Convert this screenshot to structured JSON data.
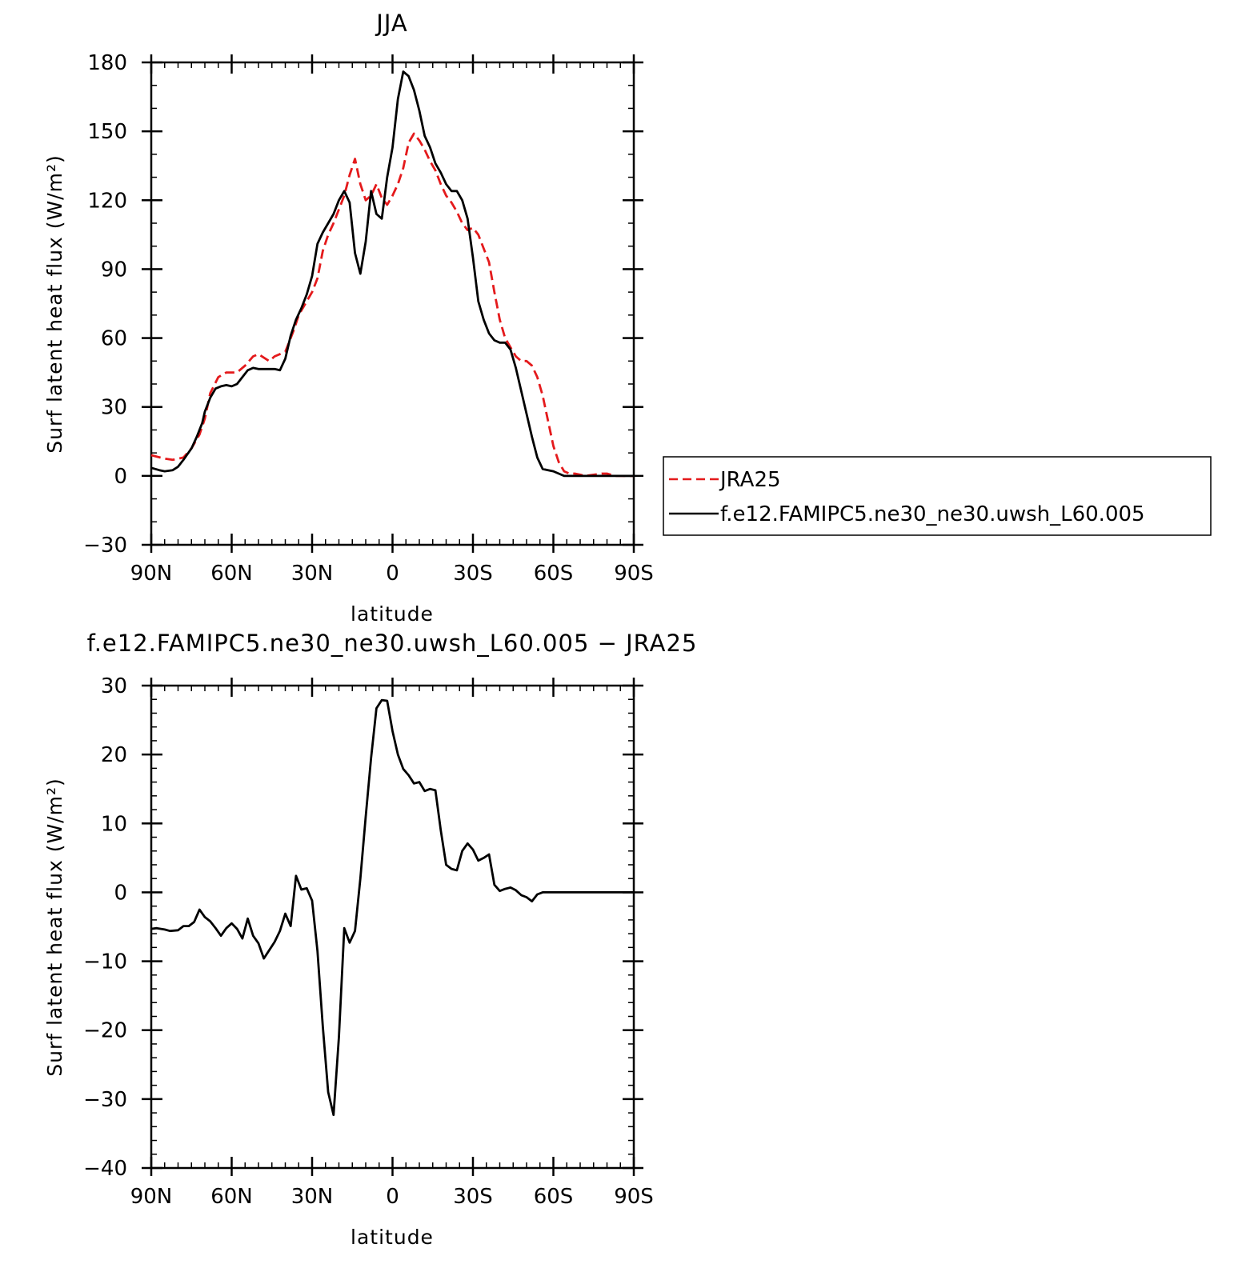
{
  "chart_data": [
    {
      "type": "line",
      "title": "JJA",
      "xlabel": "latitude",
      "ylabel": "Surf latent heat flux (W/m²)",
      "xlim": [
        90,
        -90
      ],
      "ylim": [
        -30,
        180
      ],
      "x_ticks": [
        {
          "value": 90,
          "label": "90N"
        },
        {
          "value": 60,
          "label": "60N"
        },
        {
          "value": 30,
          "label": "30N"
        },
        {
          "value": 0,
          "label": "0"
        },
        {
          "value": -30,
          "label": "30S"
        },
        {
          "value": -60,
          "label": "60S"
        },
        {
          "value": -90,
          "label": "90S"
        }
      ],
      "y_ticks": [
        {
          "value": 180,
          "label": "180"
        },
        {
          "value": 150,
          "label": "150"
        },
        {
          "value": 120,
          "label": "120"
        },
        {
          "value": 90,
          "label": "90"
        },
        {
          "value": 60,
          "label": "60"
        },
        {
          "value": 30,
          "label": "30"
        },
        {
          "value": 0,
          "label": "0"
        },
        {
          "value": -30,
          "label": "−30"
        }
      ],
      "grid": false,
      "legend": "outside-right",
      "series": [
        {
          "name": "JRA25",
          "color": "#e41a1c",
          "dash": "dashed",
          "x": [
            90,
            85,
            82,
            78,
            75,
            72,
            70,
            68,
            65,
            62,
            58,
            55,
            52,
            50,
            46,
            44,
            40,
            37,
            35,
            32,
            30,
            28,
            26,
            24,
            22,
            20,
            18,
            16,
            14,
            12,
            10,
            8,
            6,
            4,
            2,
            0,
            -2,
            -4,
            -6,
            -8,
            -10,
            -12,
            -14,
            -16,
            -18,
            -20,
            -22,
            -24,
            -26,
            -28,
            -30,
            -32,
            -34,
            -36,
            -38,
            -40,
            -42,
            -44,
            -46,
            -48,
            -50,
            -52,
            -54,
            -56,
            -58,
            -60,
            -62,
            -64,
            -66,
            -68,
            -70,
            -72,
            -75,
            -78,
            -80,
            -83,
            -85,
            -88,
            -90
          ],
          "y": [
            9,
            7.5,
            7,
            8,
            12,
            18,
            25,
            36,
            43,
            45,
            45,
            48,
            52,
            53,
            50,
            52,
            54,
            63,
            70,
            76,
            80,
            86,
            98,
            105,
            110,
            116,
            122,
            131,
            138,
            127,
            120,
            122,
            127,
            121,
            118,
            122,
            127,
            134,
            145,
            149,
            146,
            142,
            137,
            133,
            127,
            122,
            119,
            115,
            110,
            107,
            108,
            105,
            99,
            93,
            80,
            68,
            60,
            56,
            52,
            50,
            50,
            48,
            43,
            35,
            24,
            13,
            6,
            2,
            1,
            1,
            0.5,
            0,
            0.5,
            1,
            1,
            0,
            0,
            0,
            0
          ]
        },
        {
          "name": "f.e12.FAMIPC5.ne30_ne30.uwsh_L60.005",
          "color": "#000000",
          "dash": "solid",
          "x": [
            90,
            87,
            85,
            82,
            80,
            78,
            75,
            73,
            71,
            70,
            68,
            66,
            64,
            62,
            60,
            58,
            56,
            54,
            52,
            50,
            48,
            46,
            44,
            42,
            40,
            38,
            36,
            34,
            32,
            30,
            28,
            26,
            24,
            22,
            20,
            18,
            16,
            14,
            12,
            10,
            8,
            6,
            4,
            2,
            0,
            -2,
            -4,
            -6,
            -8,
            -10,
            -12,
            -14,
            -16,
            -18,
            -20,
            -22,
            -24,
            -26,
            -28,
            -30,
            -32,
            -34,
            -36,
            -38,
            -40,
            -42,
            -44,
            -46,
            -48,
            -50,
            -52,
            -54,
            -56,
            -58,
            -60,
            -62,
            -64,
            -66,
            -68,
            -70,
            -72,
            -74,
            -76,
            -78,
            -80,
            -82,
            -84,
            -86,
            -88,
            -90
          ],
          "y": [
            3.5,
            2.5,
            2,
            2.5,
            4,
            7,
            12,
            17,
            23,
            28,
            34,
            38,
            39,
            39.5,
            39,
            40,
            43,
            46,
            47,
            46.5,
            46.5,
            46.5,
            46.5,
            46,
            51,
            61,
            68,
            73,
            79,
            87,
            101,
            106,
            110,
            114,
            120,
            124,
            119,
            97,
            88,
            102,
            124,
            114,
            112,
            130,
            143,
            164,
            176,
            174,
            168,
            159,
            148,
            143,
            136,
            132,
            127,
            124,
            124,
            120,
            112,
            95,
            76,
            68,
            62,
            59,
            58,
            58,
            55,
            47,
            37,
            27,
            17,
            8,
            3,
            2.5,
            2,
            1,
            0,
            0,
            0,
            0,
            0,
            0,
            0,
            0,
            0,
            0,
            0,
            0,
            0,
            0
          ]
        }
      ]
    },
    {
      "type": "line",
      "title": "f.e12.FAMIPC5.ne30_ne30.uwsh_L60.005 − JRA25",
      "xlabel": "latitude",
      "ylabel": "Surf latent heat flux (W/m²)",
      "xlim": [
        90,
        -90
      ],
      "ylim": [
        -40,
        30
      ],
      "x_ticks": [
        {
          "value": 90,
          "label": "90N"
        },
        {
          "value": 60,
          "label": "60N"
        },
        {
          "value": 30,
          "label": "30N"
        },
        {
          "value": 0,
          "label": "0"
        },
        {
          "value": -30,
          "label": "30S"
        },
        {
          "value": -60,
          "label": "60S"
        },
        {
          "value": -90,
          "label": "90S"
        }
      ],
      "y_ticks": [
        {
          "value": 30,
          "label": "30"
        },
        {
          "value": 20,
          "label": "20"
        },
        {
          "value": 10,
          "label": "10"
        },
        {
          "value": 0,
          "label": "0"
        },
        {
          "value": -10,
          "label": "−10"
        },
        {
          "value": -20,
          "label": "−20"
        },
        {
          "value": -30,
          "label": "−30"
        },
        {
          "value": -40,
          "label": "−40"
        }
      ],
      "grid": false,
      "series": [
        {
          "name": "",
          "color": "#000000",
          "dash": "solid",
          "x": [
            90,
            88,
            85,
            83,
            80,
            78,
            76,
            74,
            72,
            70,
            68,
            66,
            64,
            62,
            60,
            58,
            56,
            54,
            52,
            50,
            48,
            46,
            44,
            42,
            40,
            38,
            36,
            34,
            32,
            30,
            28,
            26,
            24,
            22,
            20,
            18,
            16,
            14,
            12,
            10,
            8,
            6,
            4,
            2,
            0,
            -2,
            -4,
            -6,
            -8,
            -10,
            -12,
            -14,
            -16,
            -18,
            -20,
            -22,
            -24,
            -26,
            -28,
            -30,
            -32,
            -34,
            -36,
            -38,
            -40,
            -42,
            -44,
            -46,
            -48,
            -50,
            -52,
            -54,
            -56,
            -58,
            -60,
            -62,
            -64,
            -66,
            -68,
            -70,
            -72,
            -74,
            -76,
            -78,
            -80,
            -82,
            -84,
            -86,
            -88,
            -90
          ],
          "y": [
            -5.3,
            -5.2,
            -5.4,
            -5.6,
            -5.5,
            -4.9,
            -4.9,
            -4.3,
            -2.5,
            -3.6,
            -4.2,
            -5.2,
            -6.3,
            -5.2,
            -4.5,
            -5.3,
            -6.7,
            -3.8,
            -6.3,
            -7.4,
            -9.6,
            -8.4,
            -7.2,
            -5.6,
            -3.1,
            -4.9,
            2.4,
            0.4,
            0.6,
            -1.2,
            -8.5,
            -19.5,
            -29,
            -32.3,
            -21,
            -5.2,
            -7.3,
            -5.6,
            2,
            11,
            19.5,
            26.7,
            27.9,
            27.8,
            23.4,
            20,
            17.9,
            17,
            15.8,
            16,
            14.7,
            15,
            14.8,
            9,
            4,
            3.4,
            3.2,
            6,
            7.1,
            6.2,
            4.6,
            5,
            5.5,
            1.1,
            0.2,
            0.5,
            0.7,
            0.3,
            -0.4,
            -0.7,
            -1.3,
            -0.3,
            0,
            0,
            0,
            0,
            0,
            0,
            0,
            0,
            0,
            0,
            0,
            0,
            0,
            0,
            0,
            0,
            0,
            0
          ]
        }
      ]
    }
  ]
}
